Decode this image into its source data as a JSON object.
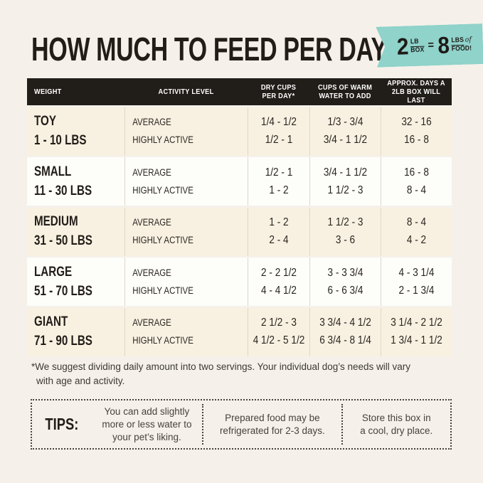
{
  "colors": {
    "page_bg": "#f5f1ea",
    "accent_teal": "#8fd3cb",
    "header_bar": "#211d18",
    "row_cream": "#f8f1e2",
    "row_white": "#fdfdfa"
  },
  "header": {
    "title": "HOW MUCH TO FEED PER DAY",
    "badge": {
      "quantity": "2",
      "unit_top": "LB",
      "unit_bottom": "BOX",
      "equals": "=",
      "amount": "8",
      "amount_unit_top": "LBS",
      "script_word": "of",
      "amount_unit_bottom": "FOOD!"
    }
  },
  "chart_data": {
    "type": "table",
    "title": "HOW MUCH TO FEED PER DAY",
    "columns": [
      {
        "lines": [
          "WEIGHT"
        ]
      },
      {
        "lines": [
          "ACTIVITY LEVEL"
        ]
      },
      {
        "lines": [
          "DRY CUPS",
          "PER DAY*"
        ]
      },
      {
        "lines": [
          "CUPS OF WARM",
          "WATER TO ADD"
        ]
      },
      {
        "lines": [
          "APPROX. DAYS A",
          "2LB BOX WILL LAST"
        ]
      }
    ],
    "rows": [
      {
        "size": "TOY",
        "weight_range": "1 - 10 LBS",
        "activity": [
          "AVERAGE",
          "HIGHLY ACTIVE"
        ],
        "dry_cups": [
          "1/4 - 1/2",
          "1/2 - 1"
        ],
        "warm_water": [
          "1/3 - 3/4",
          "3/4 - 1 1/2"
        ],
        "days_box_lasts": [
          "32 - 16",
          "16 - 8"
        ]
      },
      {
        "size": "SMALL",
        "weight_range": "11 - 30 LBS",
        "activity": [
          "AVERAGE",
          "HIGHLY ACTIVE"
        ],
        "dry_cups": [
          "1/2 - 1",
          "1 - 2"
        ],
        "warm_water": [
          "3/4 - 1 1/2",
          "1 1/2 - 3"
        ],
        "days_box_lasts": [
          "16 - 8",
          "8 - 4"
        ]
      },
      {
        "size": "MEDIUM",
        "weight_range": "31 - 50 LBS",
        "activity": [
          "AVERAGE",
          "HIGHLY ACTIVE"
        ],
        "dry_cups": [
          "1 - 2",
          "2 - 4"
        ],
        "warm_water": [
          "1 1/2 - 3",
          "3 - 6"
        ],
        "days_box_lasts": [
          "8 - 4",
          "4 - 2"
        ]
      },
      {
        "size": "LARGE",
        "weight_range": "51 - 70 LBS",
        "activity": [
          "AVERAGE",
          "HIGHLY ACTIVE"
        ],
        "dry_cups": [
          "2 - 2 1/2",
          "4 - 4 1/2"
        ],
        "warm_water": [
          "3 - 3 3/4",
          "6 - 6 3/4"
        ],
        "days_box_lasts": [
          "4 - 3 1/4",
          "2 - 1 3/4"
        ]
      },
      {
        "size": "GIANT",
        "weight_range": "71 - 90 LBS",
        "activity": [
          "AVERAGE",
          "HIGHLY ACTIVE"
        ],
        "dry_cups": [
          "2 1/2 - 3",
          "4 1/2 - 5 1/2"
        ],
        "warm_water": [
          "3 3/4 - 4 1/2",
          "6 3/4 - 8 1/4"
        ],
        "days_box_lasts": [
          "3 1/4 - 2 1/2",
          "1 3/4 - 1 1/2"
        ]
      }
    ]
  },
  "footnote": {
    "line1": "*We suggest dividing daily amount into two servings. Your individual dog’s needs will vary",
    "line2": "with age and activity."
  },
  "tips": {
    "label": "TIPS:",
    "items": [
      {
        "lines": [
          "You can add slightly",
          "more or less water to",
          "your pet’s liking."
        ]
      },
      {
        "lines": [
          "Prepared food may be",
          "refrigerated for 2-3 days."
        ]
      },
      {
        "lines": [
          "Store this box in",
          "a cool, dry place."
        ]
      }
    ]
  }
}
